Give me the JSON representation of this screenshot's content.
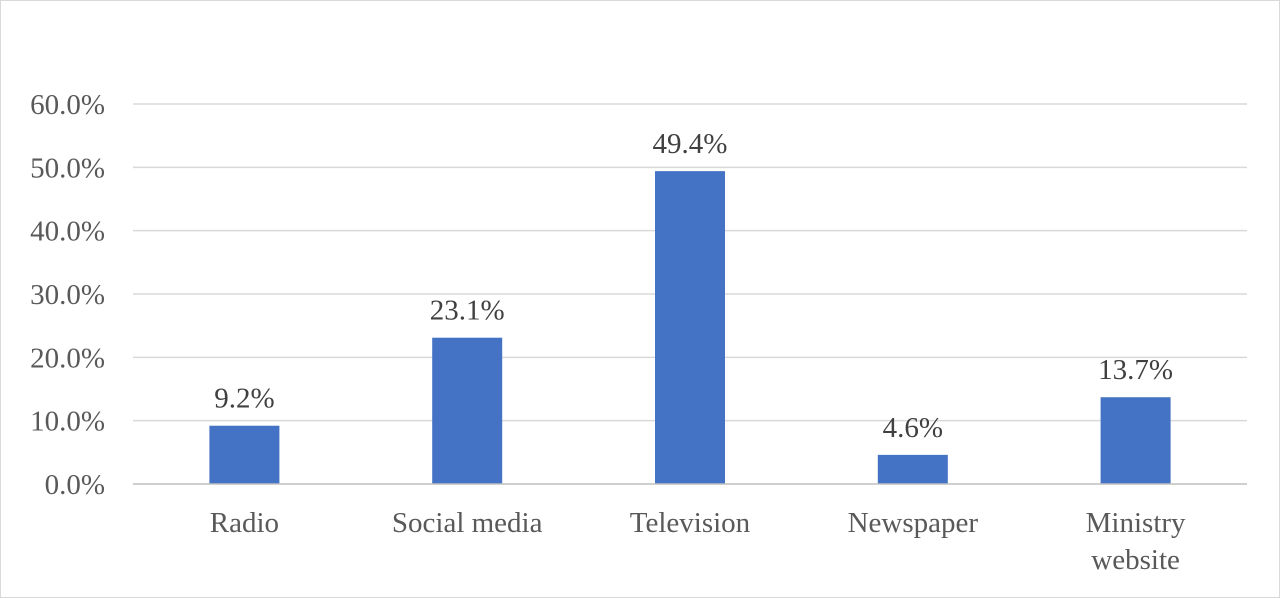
{
  "chart_data": {
    "type": "bar",
    "categories": [
      [
        "Radio"
      ],
      [
        "Social media"
      ],
      [
        "Television"
      ],
      [
        "Newspaper"
      ],
      [
        "Ministry",
        "website"
      ]
    ],
    "values": [
      9.2,
      23.1,
      49.4,
      4.6,
      13.7
    ],
    "value_labels": [
      "9.2%",
      "23.1%",
      "49.4%",
      "4.6%",
      "13.7%"
    ],
    "ylim": [
      0,
      60
    ],
    "yticks": [
      0,
      10,
      20,
      30,
      40,
      50,
      60
    ],
    "ytick_labels": [
      "0.0%",
      "10.0%",
      "20.0%",
      "30.0%",
      "40.0%",
      "50.0%",
      "60.0%"
    ],
    "grid": true,
    "legend": "none",
    "colors": {
      "bar": "#4472C4",
      "grid": "#d9d9d9",
      "axis": "#bfbfbf"
    }
  }
}
